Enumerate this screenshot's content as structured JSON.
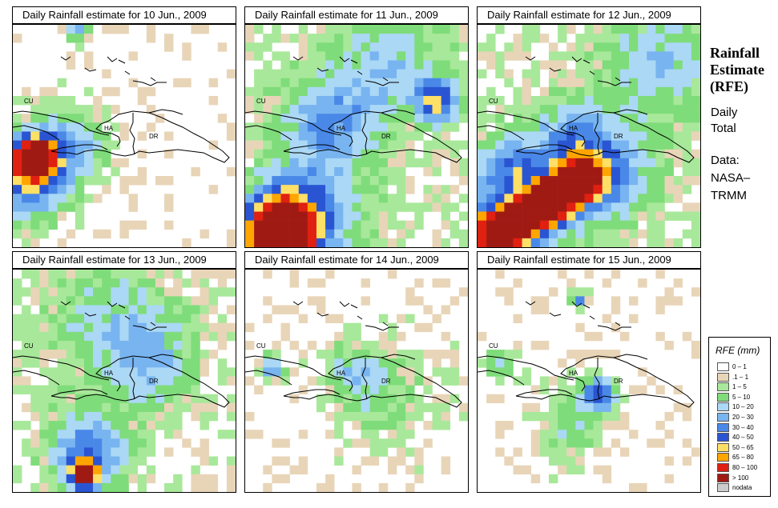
{
  "panels": [
    {
      "title": "Daily Rainfall estimate for  10 Jun., 2009",
      "date": "10 Jun., 2009"
    },
    {
      "title": "Daily Rainfall estimate for  11 Jun., 2009",
      "date": "11 Jun., 2009"
    },
    {
      "title": "Daily Rainfall estimate for  12 Jun., 2009",
      "date": "12 Jun., 2009"
    },
    {
      "title": "Daily Rainfall estimate for  13 Jun., 2009",
      "date": "13 Jun., 2009"
    },
    {
      "title": "Daily Rainfall estimate for  14 Jun., 2009",
      "date": "14 Jun., 2009"
    },
    {
      "title": "Daily Rainfall estimate for  15 Jun., 2009",
      "date": "15 Jun., 2009"
    }
  ],
  "map_labels": {
    "cuba": "CU",
    "haiti": "HA",
    "dominican_republic": "DR"
  },
  "sidebar": {
    "title_lines": [
      "Rainfall",
      "Estimate",
      "(RFE)"
    ],
    "product_lines": [
      "Daily",
      "Total"
    ],
    "source_lines": [
      "Data:",
      "NASA–",
      "TRMM"
    ]
  },
  "legend": {
    "title": "RFE (mm)",
    "items": [
      {
        "label": "0 – 1",
        "color": "#ffffff"
      },
      {
        "label": ".1 – 1",
        "color": "#e8d5b8"
      },
      {
        "label": "1 – 5",
        "color": "#a8e89a"
      },
      {
        "label": "5 – 10",
        "color": "#7fdc7a"
      },
      {
        "label": "10 – 20",
        "color": "#aad8f5"
      },
      {
        "label": "20 – 30",
        "color": "#78b4f0"
      },
      {
        "label": "30 – 40",
        "color": "#4a88e8"
      },
      {
        "label": "40 – 50",
        "color": "#2a55d2"
      },
      {
        "label": "50 – 65",
        "color": "#ffe066"
      },
      {
        "label": "65 – 80",
        "color": "#ffa500"
      },
      {
        "label": "80 – 100",
        "color": "#e02010"
      },
      {
        "label": "> 100",
        "color": "#a01a14"
      },
      {
        "label": "nodata",
        "color": "#cccccc"
      }
    ]
  }
}
